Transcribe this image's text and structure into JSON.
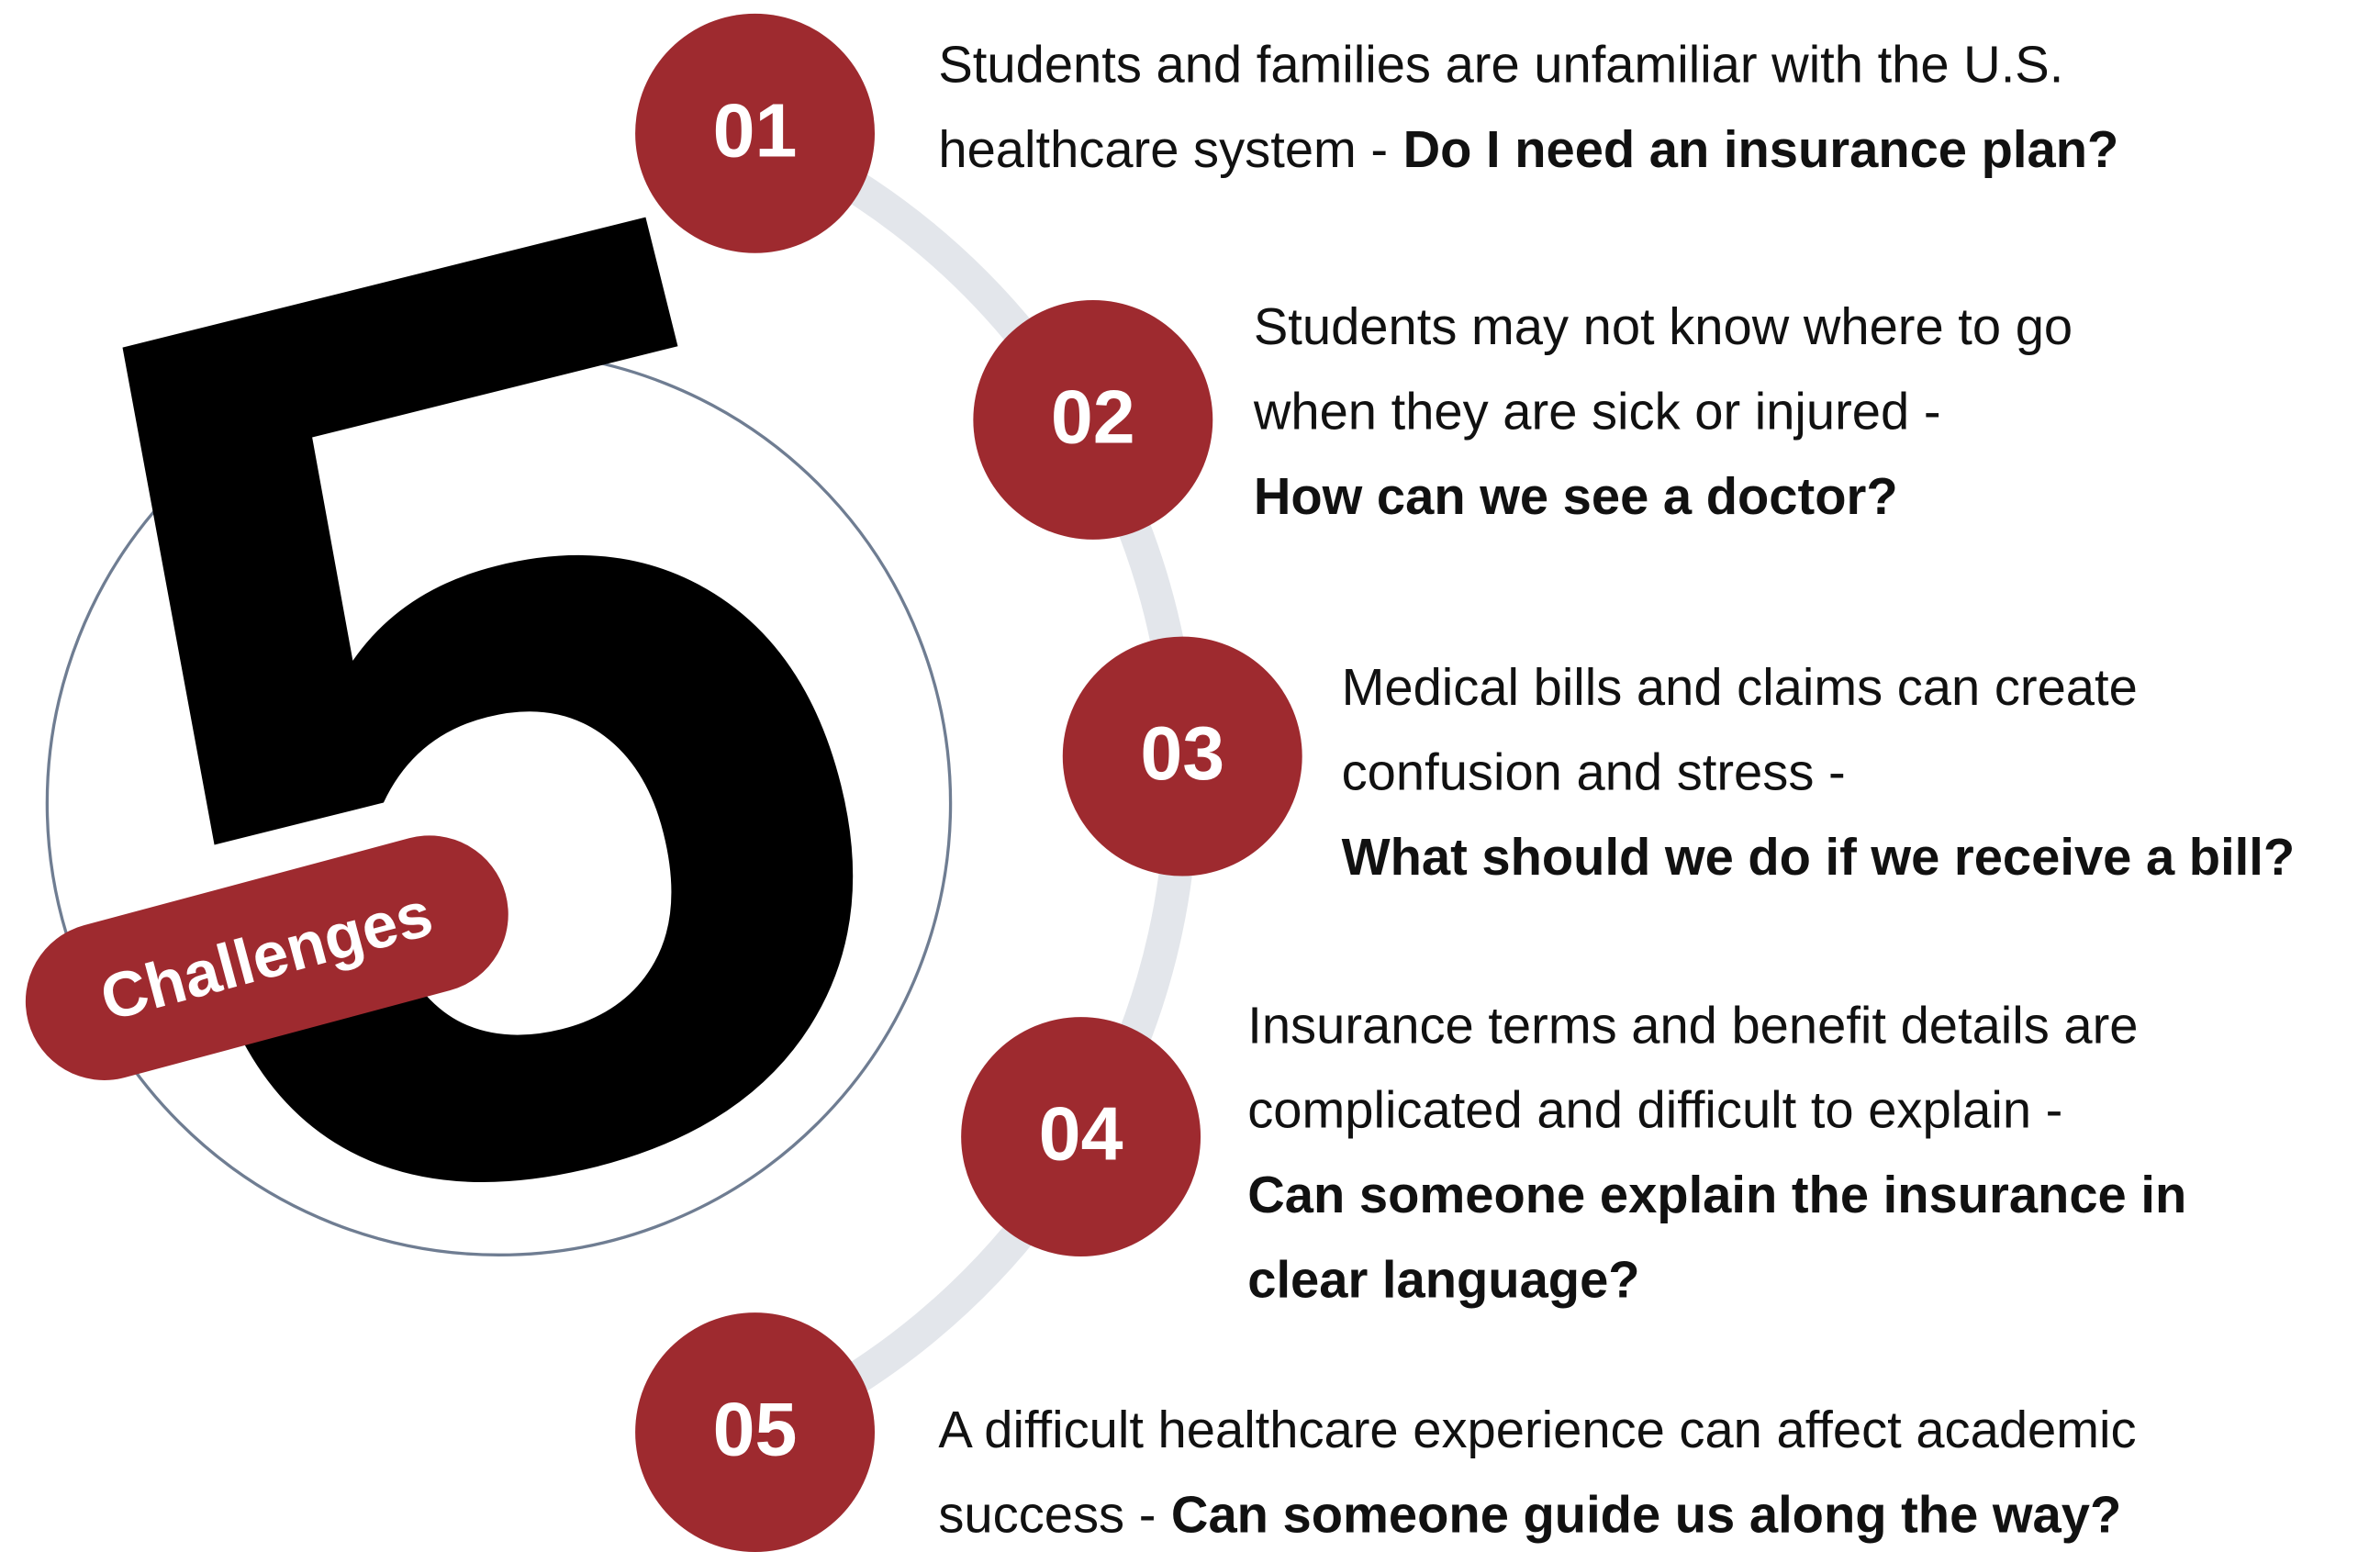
{
  "big_number": "5",
  "badge": "Challenges",
  "items": [
    {
      "number": "01",
      "text_lines": [
        "Students and families are unfamiliar with the U.S.",
        "healthcare system -"
      ],
      "question_lines": [
        "Do I need an insurance plan?"
      ]
    },
    {
      "number": "02",
      "text_lines": [
        "Students may not know where to go",
        "when they are sick or injured -"
      ],
      "question_lines": [
        "How can we see a doctor?"
      ]
    },
    {
      "number": "03",
      "text_lines": [
        "Medical bills and claims can create",
        "confusion and stress -"
      ],
      "question_lines": [
        "What should we do if we receive a bill?"
      ]
    },
    {
      "number": "04",
      "text_lines": [
        "Insurance terms and benefit details are",
        "complicated and difficult to explain -"
      ],
      "question_lines": [
        "Can someone explain the insurance in",
        "clear language?"
      ]
    },
    {
      "number": "05",
      "text_lines": [
        "A difficult healthcare experience can affect academic",
        "success -"
      ],
      "question_lines": [
        "Can someone guide us along the way?"
      ]
    }
  ]
}
